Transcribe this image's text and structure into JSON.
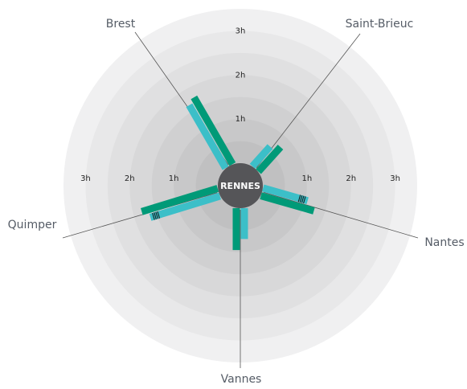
{
  "chart_data": {
    "type": "radial",
    "center_label": "RENNES",
    "categories": [
      "Brest",
      "Saint-Brieuc",
      "Nantes",
      "Vannes",
      "Quimper"
    ],
    "series": [
      {
        "color": "#3cbfc8",
        "values": [
          1.65,
          0.6,
          1.05,
          0.7,
          1.65
        ]
      },
      {
        "color": "#009a78",
        "values": [
          1.75,
          0.75,
          1.25,
          0.95,
          1.8
        ]
      }
    ],
    "rlim": [
      0,
      3.5
    ],
    "rticks": [
      {
        "value": 1,
        "label": "1h"
      },
      {
        "value": 2,
        "label": "2h"
      },
      {
        "value": 3,
        "label": "3h"
      }
    ]
  }
}
